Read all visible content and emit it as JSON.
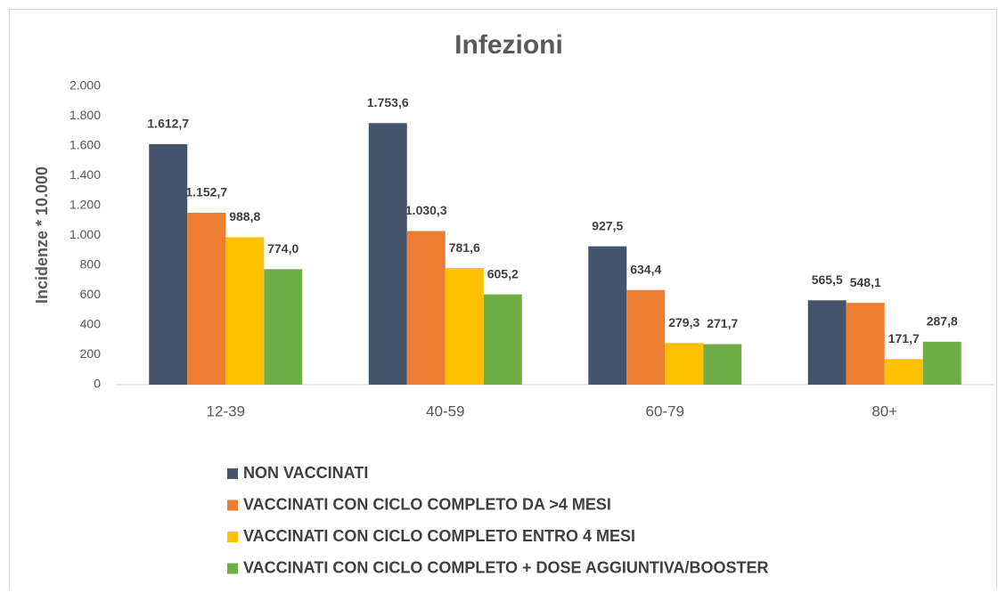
{
  "chart_data": {
    "type": "bar",
    "title": "Infezioni",
    "y_label": "Incidenze * 10.000",
    "categories": [
      "12-39",
      "40-59",
      "60-79",
      "80+"
    ],
    "series": [
      {
        "name": "NON VACCINATI",
        "color": "#44546a",
        "values": [
          1612.7,
          1753.6,
          927.5,
          565.5
        ],
        "value_labels": [
          "1.612,7",
          "1.753,6",
          "927,5",
          "565,5"
        ]
      },
      {
        "name": "VACCINATI CON CICLO COMPLETO DA >4 MESI",
        "color": "#ed7d31",
        "values": [
          1152.7,
          1030.3,
          634.4,
          548.1
        ],
        "value_labels": [
          "1.152,7",
          "1.030,3",
          "634,4",
          "548,1"
        ]
      },
      {
        "name": "VACCINATI CON CICLO COMPLETO ENTRO 4 MESI",
        "color": "#ffc000",
        "values": [
          988.8,
          781.6,
          279.3,
          171.7
        ],
        "value_labels": [
          "988,8",
          "781,6",
          "279,3",
          "171,7"
        ]
      },
      {
        "name": "VACCINATI CON CICLO COMPLETO + DOSE AGGIUNTIVA/BOOSTER",
        "color": "#70ad47",
        "values": [
          774.0,
          605.2,
          271.7,
          287.8
        ],
        "value_labels": [
          "774,0",
          "605,2",
          "271,7",
          "287,8"
        ]
      }
    ],
    "ylim": [
      0,
      2000
    ],
    "yticks": [
      0,
      200,
      400,
      600,
      800,
      {
        "value": 1000,
        "label": "1.000"
      },
      {
        "value": 1200,
        "label": "1.200"
      },
      {
        "value": 1400,
        "label": "1.400"
      },
      {
        "value": 1600,
        "label": "1.600"
      },
      {
        "value": 1800,
        "label": "1.800"
      },
      {
        "value": 2000,
        "label": "2.000"
      }
    ],
    "grid": false,
    "legend": "bottom"
  }
}
